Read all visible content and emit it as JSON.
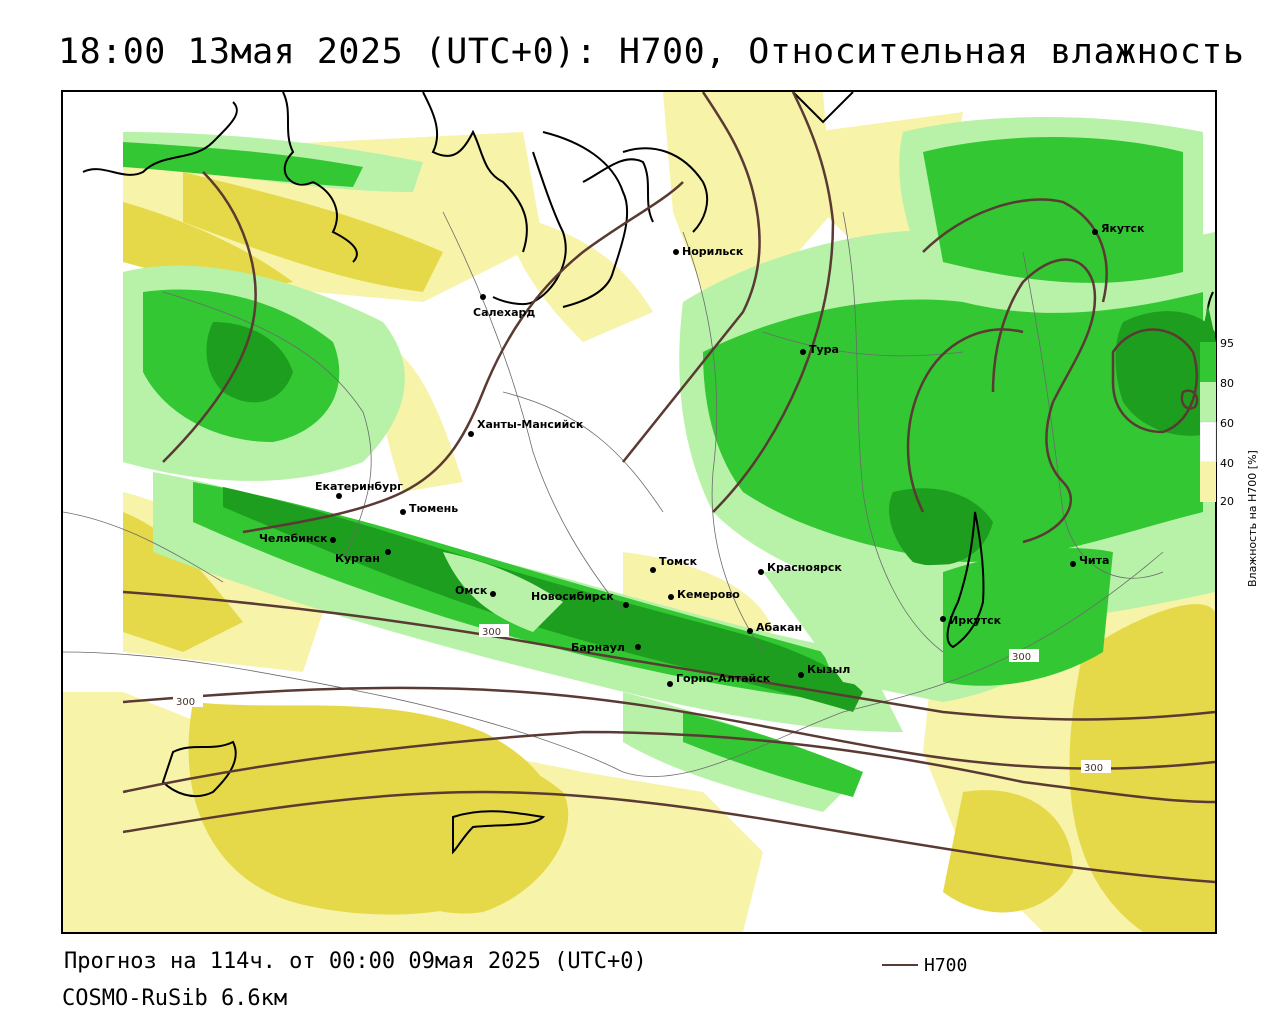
{
  "title": "18:00 13мая 2025 (UTC+0): H700, Относительная влажность",
  "footer": {
    "forecast": "Прогноз на 114ч. от 00:00 09мая 2025 (UTC+0)",
    "model": "COSMO-RuSib 6.6км",
    "contour_legend_label": "H700"
  },
  "legend": {
    "title": "Влажность на H700 [%]",
    "ticks": [
      "95",
      "80",
      "60",
      "40",
      "20"
    ],
    "colors": [
      "#1e9e1e",
      "#33c733",
      "#b7f2a8",
      "#ffffff",
      "#f7f3a8",
      "#e5d94a"
    ]
  },
  "isohypse_labels": [
    "300",
    "300",
    "300",
    "300"
  ],
  "cities": [
    {
      "name": "Норильск"
    },
    {
      "name": "Якутск"
    },
    {
      "name": "Салехард"
    },
    {
      "name": "Тура"
    },
    {
      "name": "Ханты-Мансийск"
    },
    {
      "name": "Екатеринбург"
    },
    {
      "name": "Тюмень"
    },
    {
      "name": "Челябинск"
    },
    {
      "name": "Курган"
    },
    {
      "name": "Омск"
    },
    {
      "name": "Новосибирск"
    },
    {
      "name": "Томск"
    },
    {
      "name": "Кемерово"
    },
    {
      "name": "Красноярск"
    },
    {
      "name": "Абакан"
    },
    {
      "name": "Барнаул"
    },
    {
      "name": "Горно-Алтайск"
    },
    {
      "name": "Кызыл"
    },
    {
      "name": "Иркутск"
    },
    {
      "name": "Чита"
    }
  ],
  "colors": {
    "dark_green": "#1e9e1e",
    "green": "#33c733",
    "light_green": "#b7f2a8",
    "light_yellow": "#f7f3a8",
    "olive_yellow": "#e5d94a",
    "contour": "#5a3a33"
  }
}
